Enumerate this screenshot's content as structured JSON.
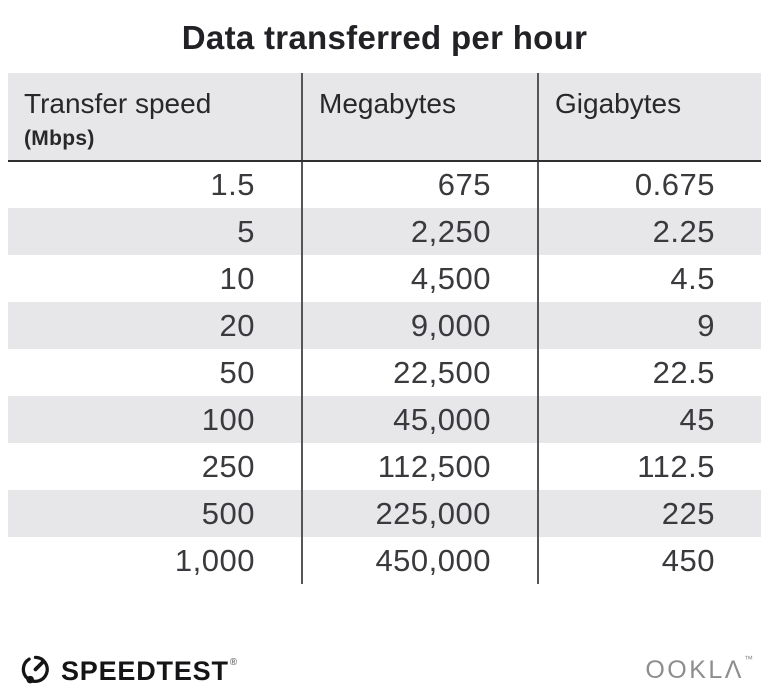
{
  "title": "Data transferred per hour",
  "table": {
    "columns": [
      {
        "label": "Transfer speed",
        "sublabel": "(Mbps)"
      },
      {
        "label": "Megabytes",
        "sublabel": ""
      },
      {
        "label": "Gigabytes",
        "sublabel": ""
      }
    ],
    "rows": [
      [
        "1.5",
        "675",
        "0.675"
      ],
      [
        "5",
        "2,250",
        "2.25"
      ],
      [
        "10",
        "4,500",
        "4.5"
      ],
      [
        "20",
        "9,000",
        "9"
      ],
      [
        "50",
        "22,500",
        "22.5"
      ],
      [
        "100",
        "45,000",
        "45"
      ],
      [
        "250",
        "112,500",
        "112.5"
      ],
      [
        "500",
        "225,000",
        "225"
      ],
      [
        "1,000",
        "450,000",
        "450"
      ]
    ]
  },
  "footer": {
    "brand": "SPEEDTEST",
    "brand_mark": "®",
    "company": "OOKLΛ",
    "company_mark": "™"
  },
  "colors": {
    "row_alt_bg": "#e7e7ea",
    "header_bg": "#e7e7ea",
    "divider": "#55555a",
    "header_rule": "#2e2e31",
    "title_text": "#222226",
    "body_text": "#3a3a3e",
    "ookla_gray": "#8d8d8f",
    "brand_black": "#151517"
  },
  "chart_data": {
    "type": "table",
    "title": "Data transferred per hour",
    "columns": [
      "Transfer speed (Mbps)",
      "Megabytes",
      "Gigabytes"
    ],
    "rows": [
      [
        1.5,
        675,
        0.675
      ],
      [
        5,
        2250,
        2.25
      ],
      [
        10,
        4500,
        4.5
      ],
      [
        20,
        9000,
        9
      ],
      [
        50,
        22500,
        22.5
      ],
      [
        100,
        45000,
        45
      ],
      [
        250,
        112500,
        112.5
      ],
      [
        500,
        225000,
        225
      ],
      [
        1000,
        450000,
        450
      ]
    ]
  }
}
